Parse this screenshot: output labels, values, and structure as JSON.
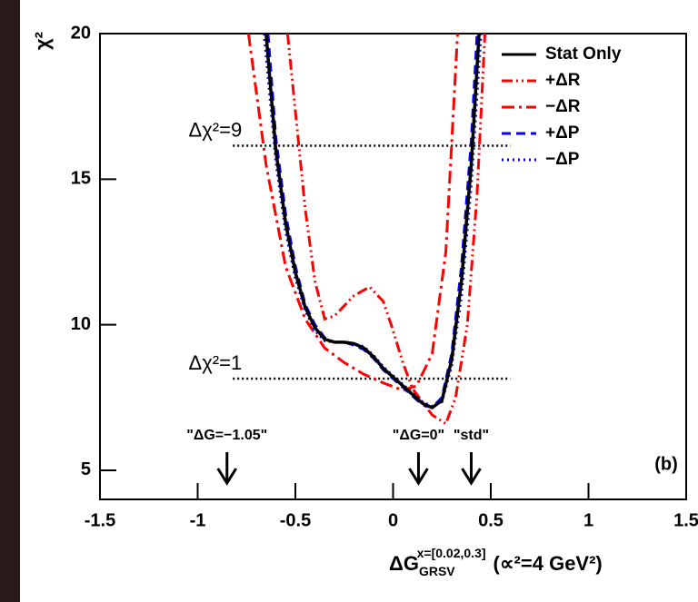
{
  "chart_data": {
    "type": "line",
    "ylabel": "χ²",
    "xlabel": {
      "main": "ΔG",
      "sub": "GRSV",
      "sup": "x=[0.02,0.3]",
      "rest": "(∝²=4 GeV²)"
    },
    "panel_label": "(b)",
    "xlim": [
      -1.5,
      1.5
    ],
    "xticks": [
      -1.5,
      -1,
      -0.5,
      0,
      0.5,
      1,
      1.5
    ],
    "ylim": [
      4,
      20
    ],
    "yticks": [
      5,
      10,
      15,
      20
    ],
    "legend": "top-right",
    "series": [
      {
        "name": "Stat Only",
        "color": "#000000",
        "style": "solid",
        "x": [
          -0.65,
          -0.6,
          -0.55,
          -0.5,
          -0.45,
          -0.4,
          -0.35,
          -0.3,
          -0.25,
          -0.2,
          -0.15,
          -0.1,
          -0.05,
          0,
          0.05,
          0.1,
          0.15,
          0.2,
          0.25,
          0.3,
          0.35,
          0.4,
          0.44
        ],
        "values": [
          20,
          16,
          13.5,
          11.8,
          10.6,
          9.9,
          9.5,
          9.4,
          9.4,
          9.35,
          9.2,
          8.9,
          8.5,
          8.2,
          7.9,
          7.6,
          7.3,
          7.15,
          7.4,
          8.8,
          11.5,
          15.5,
          20
        ]
      },
      {
        "name": "+ΔR",
        "color": "#ff0000",
        "style": "dash-dot-dot",
        "x": [
          -0.54,
          -0.45,
          -0.4,
          -0.35,
          -0.3,
          -0.2,
          -0.12,
          -0.05,
          0,
          0.05,
          0.1,
          0.2,
          0.27,
          0.32,
          0.38,
          0.43,
          0.47
        ],
        "values": [
          20,
          14,
          11.5,
          10.2,
          10.3,
          11,
          11.3,
          10.8,
          9.8,
          8.7,
          7.8,
          6.9,
          6.6,
          7.5,
          10,
          14.5,
          20
        ]
      },
      {
        "name": "−ΔR",
        "color": "#ff0000",
        "style": "dash-dot",
        "x": [
          -0.74,
          -0.65,
          -0.55,
          -0.45,
          -0.35,
          -0.25,
          -0.15,
          -0.05,
          0.05,
          0.12,
          0.2,
          0.27,
          0.33
        ],
        "values": [
          20,
          15.5,
          12,
          10.2,
          9.2,
          8.7,
          8.3,
          8,
          7.75,
          7.9,
          9,
          12.5,
          20
        ]
      },
      {
        "name": "+ΔP",
        "color": "#0000ff",
        "style": "dashed",
        "x": [
          -0.64,
          -0.6,
          -0.55,
          -0.5,
          -0.45,
          -0.4,
          -0.35,
          -0.3,
          -0.25,
          -0.2,
          -0.15,
          -0.1,
          -0.05,
          0,
          0.05,
          0.1,
          0.15,
          0.2,
          0.25,
          0.3,
          0.35,
          0.4,
          0.43
        ],
        "values": [
          20,
          16.4,
          13.8,
          12,
          10.7,
          10,
          9.55,
          9.4,
          9.4,
          9.3,
          9.15,
          8.85,
          8.45,
          8.15,
          7.85,
          7.55,
          7.25,
          7.15,
          7.5,
          9,
          12,
          16.3,
          20
        ]
      },
      {
        "name": "−ΔP",
        "color": "#0000ff",
        "style": "dotted",
        "x": [
          -0.66,
          -0.6,
          -0.55,
          -0.5,
          -0.45,
          -0.4,
          -0.35,
          -0.3,
          -0.25,
          -0.2,
          -0.15,
          -0.1,
          -0.05,
          0,
          0.05,
          0.1,
          0.15,
          0.2,
          0.25,
          0.3,
          0.35,
          0.4,
          0.45
        ],
        "values": [
          20,
          15.6,
          13.2,
          11.6,
          10.5,
          9.8,
          9.45,
          9.4,
          9.4,
          9.35,
          9.25,
          8.95,
          8.55,
          8.25,
          7.95,
          7.65,
          7.35,
          7.2,
          7.35,
          8.6,
          11,
          14.8,
          20
        ]
      }
    ],
    "reference_lines": [
      {
        "label": "Δχ²=9",
        "y": 16.15,
        "x": [
          -0.82,
          0.6
        ]
      },
      {
        "label": "Δχ²=1",
        "y": 8.15,
        "x": [
          -0.82,
          0.6
        ]
      }
    ],
    "arrows": [
      {
        "label": "\"ΔG=−1.05\"",
        "x": -0.85
      },
      {
        "label": "\"ΔG=0\"",
        "x": 0.13
      },
      {
        "label": "\"std\"",
        "x": 0.4
      }
    ]
  }
}
